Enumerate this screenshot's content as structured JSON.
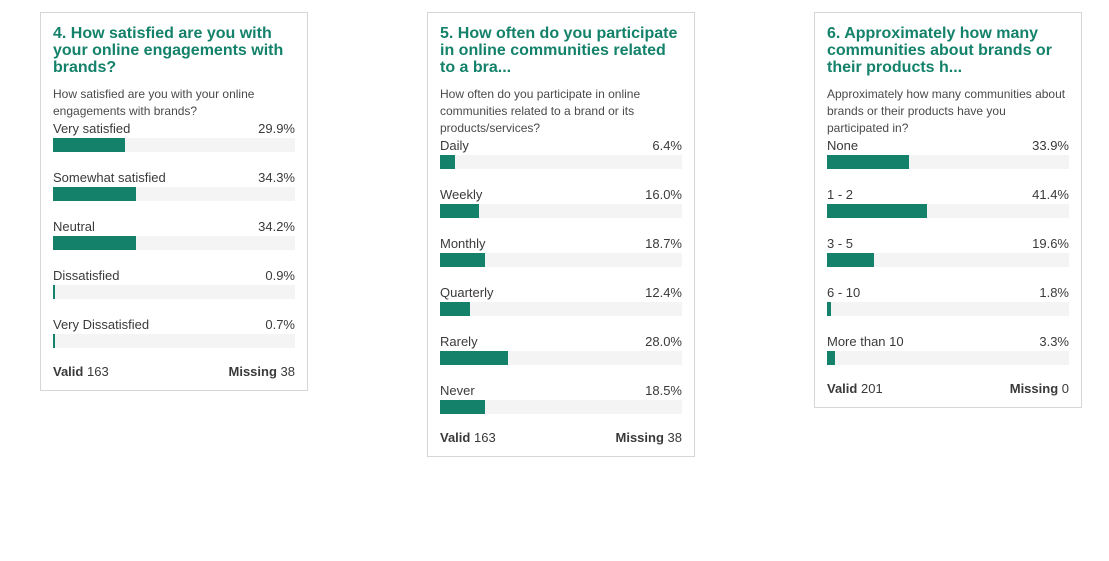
{
  "cards": [
    {
      "title": "4. How satisfied are you with your online engagements with brands?",
      "subtitle": "How satisfied are you with your online engagements with brands?",
      "valid_label": "Valid",
      "valid_value": "163",
      "missing_label": "Missing",
      "missing_value": "38"
    },
    {
      "title": "5. How often do you participate in online communities related to a bra...",
      "subtitle": "How often do you participate in online communities related to a brand or its products/services?",
      "valid_label": "Valid",
      "valid_value": "163",
      "missing_label": "Missing",
      "missing_value": "38"
    },
    {
      "title": "6. Approximately how many communities about brands or their products h...",
      "subtitle": "Approximately how many communities about brands or their products have you participated in?",
      "valid_label": "Valid",
      "valid_value": "201",
      "missing_label": "Missing",
      "missing_value": "0"
    }
  ],
  "colors": {
    "bar": "#14826a",
    "track": "#f4f4f4",
    "title": "#14826a"
  },
  "chart_data": [
    {
      "type": "bar",
      "orientation": "horizontal",
      "categories": [
        "Very satisfied",
        "Somewhat satisfied",
        "Neutral",
        "Dissatisfied",
        "Very Dissatisfied"
      ],
      "values": [
        29.9,
        34.3,
        34.2,
        0.9,
        0.7
      ],
      "value_labels": [
        "29.9%",
        "34.3%",
        "34.2%",
        "0.9%",
        "0.7%"
      ],
      "xlim": [
        0,
        100
      ]
    },
    {
      "type": "bar",
      "orientation": "horizontal",
      "categories": [
        "Daily",
        "Weekly",
        "Monthly",
        "Quarterly",
        "Rarely",
        "Never"
      ],
      "values": [
        6.4,
        16.0,
        18.7,
        12.4,
        28.0,
        18.5
      ],
      "value_labels": [
        "6.4%",
        "16.0%",
        "18.7%",
        "12.4%",
        "28.0%",
        "18.5%"
      ],
      "xlim": [
        0,
        100
      ]
    },
    {
      "type": "bar",
      "orientation": "horizontal",
      "categories": [
        "None",
        "1 - 2",
        "3 - 5",
        "6 - 10",
        "More than 10"
      ],
      "values": [
        33.9,
        41.4,
        19.6,
        1.8,
        3.3
      ],
      "value_labels": [
        "33.9%",
        "41.4%",
        "19.6%",
        "1.8%",
        "3.3%"
      ],
      "xlim": [
        0,
        100
      ]
    }
  ]
}
